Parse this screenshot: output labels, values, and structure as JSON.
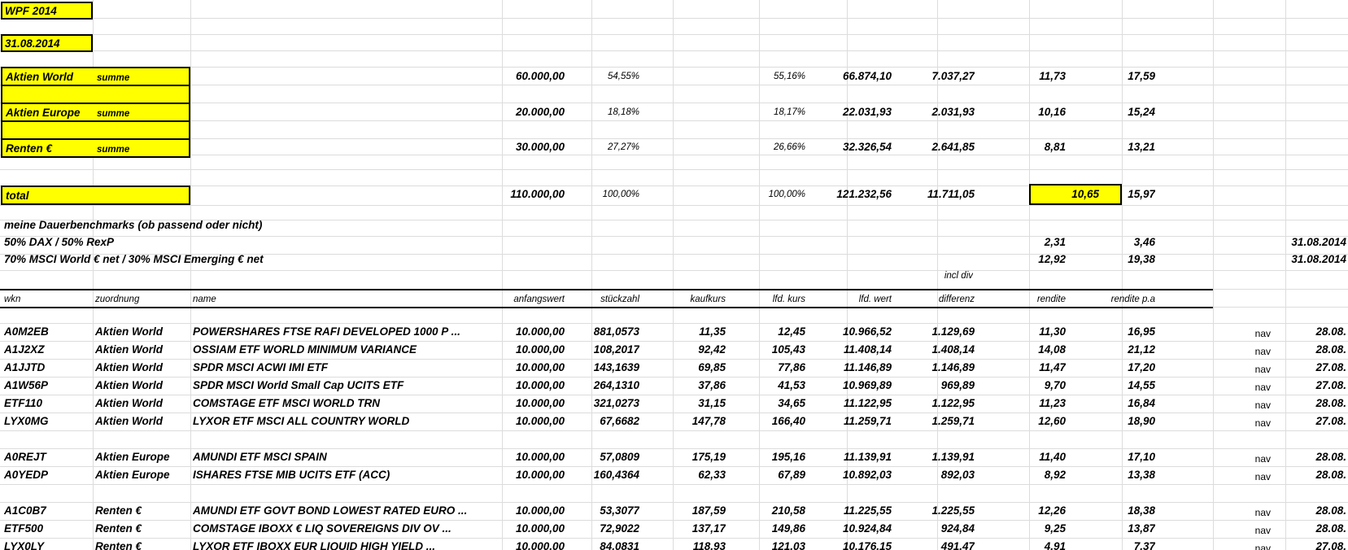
{
  "title_cells": [
    "WPF 2014",
    "31.08.2014"
  ],
  "summary": [
    {
      "label": "Aktien World",
      "sub": "summe",
      "anfangswert": "60.000,00",
      "anteil": "54,55%",
      "anteil_lfd": "55,16%",
      "lfd_wert": "66.874,10",
      "differenz": "7.037,27",
      "rendite": "11,73",
      "rendite_pa": "17,59"
    },
    {
      "label": "Aktien Europe",
      "sub": "summe",
      "anfangswert": "20.000,00",
      "anteil": "18,18%",
      "anteil_lfd": "18,17%",
      "lfd_wert": "22.031,93",
      "differenz": "2.031,93",
      "rendite": "10,16",
      "rendite_pa": "15,24"
    },
    {
      "label": "Renten €",
      "sub": "summe",
      "anfangswert": "30.000,00",
      "anteil": "27,27%",
      "anteil_lfd": "26,66%",
      "lfd_wert": "32.326,54",
      "differenz": "2.641,85",
      "rendite": "8,81",
      "rendite_pa": "13,21"
    }
  ],
  "total": {
    "label": "total",
    "anfangswert": "110.000,00",
    "anteil": "100,00%",
    "anteil_lfd": "100,00%",
    "lfd_wert": "121.232,56",
    "differenz": "11.711,05",
    "rendite": "10,65",
    "rendite_pa": "15,97"
  },
  "benchmarks": {
    "heading": "meine Dauerbenchmarks (ob passend oder nicht)",
    "rows": [
      {
        "label": "50% DAX / 50% RexP",
        "rendite": "2,31",
        "rendite_pa": "3,46",
        "date": "31.08.2014"
      },
      {
        "label": "70% MSCI World € net / 30% MSCI Emerging € net",
        "rendite": "12,92",
        "rendite_pa": "19,38",
        "date": "31.08.2014"
      }
    ]
  },
  "incl_div": "incl div",
  "headers": {
    "wkn": "wkn",
    "zuordnung": "zuordnung",
    "name": "name",
    "anfangswert": "anfangswert",
    "stueckzahl": "stückzahl",
    "kaufkurs": "kaufkurs",
    "lfd_kurs": "lfd. kurs",
    "lfd_wert": "lfd. wert",
    "differenz": "differenz",
    "rendite": "rendite",
    "rendite_pa": "rendite p.a"
  },
  "positions": [
    {
      "wkn": "A0M2EB",
      "zuordnung": "Aktien World",
      "name": "POWERSHARES FTSE RAFI DEVELOPED 1000 P ...",
      "anfangswert": "10.000,00",
      "stueckzahl": "881,0573",
      "kaufkurs": "11,35",
      "lfd_kurs": "12,45",
      "lfd_wert": "10.966,52",
      "differenz": "1.129,69",
      "rendite": "11,30",
      "rendite_pa": "16,95",
      "quelle": "nav",
      "datum": "28.08."
    },
    {
      "wkn": "A1J2XZ",
      "zuordnung": "Aktien World",
      "name": "OSSIAM ETF WORLD MINIMUM VARIANCE",
      "anfangswert": "10.000,00",
      "stueckzahl": "108,2017",
      "kaufkurs": "92,42",
      "lfd_kurs": "105,43",
      "lfd_wert": "11.408,14",
      "differenz": "1.408,14",
      "rendite": "14,08",
      "rendite_pa": "21,12",
      "quelle": "nav",
      "datum": "28.08."
    },
    {
      "wkn": "A1JJTD",
      "zuordnung": "Aktien World",
      "name": "SPDR MSCI ACWI IMI ETF",
      "anfangswert": "10.000,00",
      "stueckzahl": "143,1639",
      "kaufkurs": "69,85",
      "lfd_kurs": "77,86",
      "lfd_wert": "11.146,89",
      "differenz": "1.146,89",
      "rendite": "11,47",
      "rendite_pa": "17,20",
      "quelle": "nav",
      "datum": "27.08."
    },
    {
      "wkn": "A1W56P",
      "zuordnung": "Aktien World",
      "name": "SPDR MSCI World Small Cap UCITS ETF",
      "anfangswert": "10.000,00",
      "stueckzahl": "264,1310",
      "kaufkurs": "37,86",
      "lfd_kurs": "41,53",
      "lfd_wert": "10.969,89",
      "differenz": "969,89",
      "rendite": "9,70",
      "rendite_pa": "14,55",
      "quelle": "nav",
      "datum": "27.08."
    },
    {
      "wkn": "ETF110",
      "zuordnung": "Aktien World",
      "name": "COMSTAGE ETF MSCI WORLD TRN",
      "anfangswert": "10.000,00",
      "stueckzahl": "321,0273",
      "kaufkurs": "31,15",
      "lfd_kurs": "34,65",
      "lfd_wert": "11.122,95",
      "differenz": "1.122,95",
      "rendite": "11,23",
      "rendite_pa": "16,84",
      "quelle": "nav",
      "datum": "28.08."
    },
    {
      "wkn": "LYX0MG",
      "zuordnung": "Aktien World",
      "name": "LYXOR ETF MSCI ALL COUNTRY WORLD",
      "anfangswert": "10.000,00",
      "stueckzahl": "67,6682",
      "kaufkurs": "147,78",
      "lfd_kurs": "166,40",
      "lfd_wert": "11.259,71",
      "differenz": "1.259,71",
      "rendite": "12,60",
      "rendite_pa": "18,90",
      "quelle": "nav",
      "datum": "27.08."
    },
    {
      "wkn": "A0REJT",
      "zuordnung": "Aktien Europe",
      "name": "AMUNDI ETF MSCI SPAIN",
      "anfangswert": "10.000,00",
      "stueckzahl": "57,0809",
      "kaufkurs": "175,19",
      "lfd_kurs": "195,16",
      "lfd_wert": "11.139,91",
      "differenz": "1.139,91",
      "rendite": "11,40",
      "rendite_pa": "17,10",
      "quelle": "nav",
      "datum": "28.08."
    },
    {
      "wkn": "A0YEDP",
      "zuordnung": "Aktien Europe",
      "name": "ISHARES FTSE MIB UCITS ETF (ACC)",
      "anfangswert": "10.000,00",
      "stueckzahl": "160,4364",
      "kaufkurs": "62,33",
      "lfd_kurs": "67,89",
      "lfd_wert": "10.892,03",
      "differenz": "892,03",
      "rendite": "8,92",
      "rendite_pa": "13,38",
      "quelle": "nav",
      "datum": "28.08."
    },
    {
      "wkn": "A1C0B7",
      "zuordnung": "Renten €",
      "name": "AMUNDI ETF GOVT BOND LOWEST RATED EURO ...",
      "anfangswert": "10.000,00",
      "stueckzahl": "53,3077",
      "kaufkurs": "187,59",
      "lfd_kurs": "210,58",
      "lfd_wert": "11.225,55",
      "differenz": "1.225,55",
      "rendite": "12,26",
      "rendite_pa": "18,38",
      "quelle": "nav",
      "datum": "28.08."
    },
    {
      "wkn": "ETF500",
      "zuordnung": "Renten €",
      "name": "COMSTAGE IBOXX € LIQ SOVEREIGNS DIV OV ...",
      "anfangswert": "10.000,00",
      "stueckzahl": "72,9022",
      "kaufkurs": "137,17",
      "lfd_kurs": "149,86",
      "lfd_wert": "10.924,84",
      "differenz": "924,84",
      "rendite": "9,25",
      "rendite_pa": "13,87",
      "quelle": "nav",
      "datum": "28.08."
    },
    {
      "wkn": "LYX0LY",
      "zuordnung": "Renten €",
      "name": "LYXOR ETF IBOXX EUR LIQUID HIGH YIELD ...",
      "anfangswert": "10.000,00",
      "stueckzahl": "84,0831",
      "kaufkurs": "118,93",
      "lfd_kurs": "121,03",
      "lfd_wert": "10.176,15",
      "differenz": "491,47",
      "rendite": "4,91",
      "rendite_pa": "7,37",
      "quelle": "nav",
      "datum": "27.08."
    }
  ],
  "colors": {
    "highlight": "#ffff00",
    "grid": "#dcdcdc",
    "text": "#000000"
  }
}
